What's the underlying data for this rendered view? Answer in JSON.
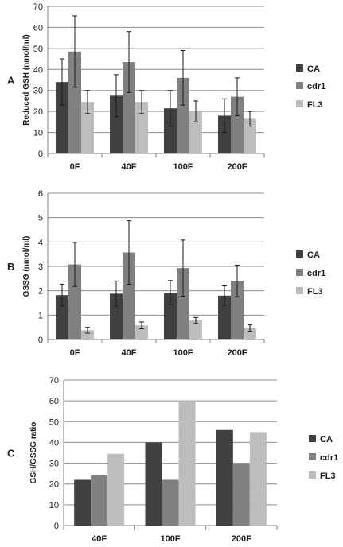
{
  "colors": {
    "CA": "#404040",
    "cdr1": "#808080",
    "FL3": "#bdbdbd",
    "axis": "#7f7f7f",
    "grid": "#8c8c8c",
    "error": "#1a1a1a"
  },
  "chart_data": [
    {
      "type": "bar",
      "panel_label": "A",
      "ylabel": "Reduced GSH (nmol/ml)",
      "ylim": [
        0,
        70
      ],
      "ytick_step": 10,
      "grid": true,
      "legend": "right",
      "categories": [
        "0F",
        "40F",
        "100F",
        "200F"
      ],
      "series": [
        {
          "name": "CA",
          "values": [
            34,
            27.5,
            21.5,
            18
          ],
          "errors": [
            11,
            10,
            8.5,
            8
          ]
        },
        {
          "name": "cdr1",
          "values": [
            48.5,
            43.5,
            36,
            27
          ],
          "errors": [
            17,
            14.5,
            13,
            9
          ]
        },
        {
          "name": "FL3",
          "values": [
            24.5,
            24.5,
            20,
            16.5
          ],
          "errors": [
            5.5,
            5.5,
            5,
            3.5
          ]
        }
      ]
    },
    {
      "type": "bar",
      "panel_label": "B",
      "ylabel": "GSSG (nmol/ml)",
      "ylim": [
        0,
        6
      ],
      "ytick_step": 1,
      "grid": true,
      "legend": "right",
      "categories": [
        "0F",
        "40F",
        "100F",
        "200F"
      ],
      "series": [
        {
          "name": "CA",
          "values": [
            1.82,
            1.88,
            1.92,
            1.8
          ],
          "errors": [
            0.45,
            0.52,
            0.5,
            0.4
          ]
        },
        {
          "name": "cdr1",
          "values": [
            3.08,
            3.57,
            2.93,
            2.4
          ],
          "errors": [
            0.9,
            1.3,
            1.15,
            0.65
          ]
        },
        {
          "name": "FL3",
          "values": [
            0.38,
            0.58,
            0.78,
            0.47
          ],
          "errors": [
            0.12,
            0.14,
            0.12,
            0.13
          ]
        }
      ]
    },
    {
      "type": "bar",
      "panel_label": "C",
      "ylabel": "GSH/GSSG ratio",
      "ylim": [
        0,
        70
      ],
      "ytick_step": 10,
      "grid": true,
      "legend": "right",
      "categories": [
        "40F",
        "100F",
        "200F"
      ],
      "series": [
        {
          "name": "CA",
          "values": [
            22,
            40,
            46
          ]
        },
        {
          "name": "cdr1",
          "values": [
            24.5,
            22,
            30
          ]
        },
        {
          "name": "FL3",
          "values": [
            34.5,
            60,
            45
          ]
        }
      ]
    }
  ]
}
